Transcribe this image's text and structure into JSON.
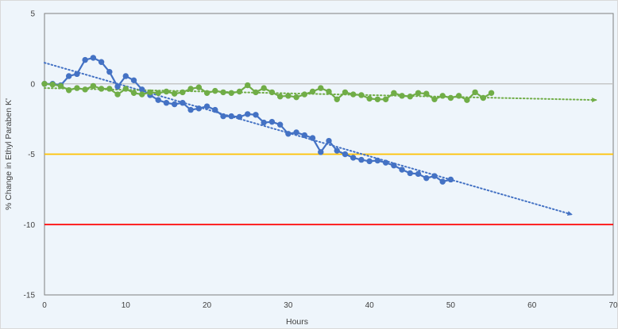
{
  "chart_data": {
    "type": "line",
    "title": "",
    "xlabel": "Hours",
    "ylabel": "% Change in Ethyl Paraben K'",
    "xlim": [
      0,
      70
    ],
    "ylim": [
      -15,
      5
    ],
    "x_ticks": [
      0,
      10,
      20,
      30,
      40,
      50,
      60,
      70
    ],
    "y_ticks": [
      5,
      0,
      -5,
      -10,
      -15
    ],
    "grid": false,
    "legend": "none",
    "colors": {
      "plot_background": "#eef5fb",
      "blue_series": "#4472c4",
      "green_series": "#70ad47",
      "zero_line": "#bfbfbf",
      "warning_line": "#ffc000",
      "limit_line": "#ff0000"
    },
    "reference_lines": [
      {
        "y": 0,
        "color": "#bfbfbf"
      },
      {
        "y": -5,
        "color": "#ffc000"
      },
      {
        "y": -10,
        "color": "#ff0000"
      }
    ],
    "series": [
      {
        "color": "#4472c4",
        "x": [
          0,
          1,
          2,
          3,
          4,
          5,
          6,
          7,
          8,
          9,
          10,
          11,
          12,
          13,
          14,
          15,
          16,
          17,
          18,
          19,
          20,
          21,
          22,
          23,
          24,
          25,
          26,
          27,
          28,
          29,
          30,
          31,
          32,
          33,
          34,
          35,
          36,
          37,
          38,
          39,
          40,
          41,
          42,
          43,
          44,
          45,
          46,
          47,
          48,
          49,
          50
        ],
        "y": [
          0,
          0,
          -0.1,
          0.55,
          0.7,
          1.7,
          1.85,
          1.55,
          0.85,
          -0.2,
          0.55,
          0.25,
          -0.4,
          -0.8,
          -1.15,
          -1.35,
          -1.45,
          -1.35,
          -1.85,
          -1.75,
          -1.6,
          -1.85,
          -2.3,
          -2.3,
          -2.35,
          -2.15,
          -2.2,
          -2.75,
          -2.7,
          -2.9,
          -3.55,
          -3.45,
          -3.65,
          -3.85,
          -4.85,
          -4.05,
          -4.75,
          -5.0,
          -5.25,
          -5.4,
          -5.5,
          -5.45,
          -5.6,
          -5.8,
          -6.1,
          -6.35,
          -6.4,
          -6.7,
          -6.55,
          -6.95,
          -6.8
        ],
        "trendline": {
          "x": [
            0,
            65
          ],
          "y": [
            1.5,
            -9.3
          ]
        }
      },
      {
        "color": "#70ad47",
        "x": [
          0,
          1,
          2,
          3,
          4,
          5,
          6,
          7,
          8,
          9,
          10,
          11,
          12,
          13,
          14,
          15,
          16,
          17,
          18,
          19,
          20,
          21,
          22,
          23,
          24,
          25,
          26,
          27,
          28,
          29,
          30,
          31,
          32,
          33,
          34,
          35,
          36,
          37,
          38,
          39,
          40,
          41,
          42,
          43,
          44,
          45,
          46,
          47,
          48,
          49,
          50,
          51,
          52,
          53,
          54,
          55
        ],
        "y": [
          0,
          -0.05,
          -0.15,
          -0.45,
          -0.3,
          -0.4,
          -0.15,
          -0.35,
          -0.35,
          -0.75,
          -0.35,
          -0.65,
          -0.75,
          -0.6,
          -0.65,
          -0.55,
          -0.7,
          -0.6,
          -0.35,
          -0.25,
          -0.65,
          -0.5,
          -0.6,
          -0.65,
          -0.55,
          -0.1,
          -0.6,
          -0.3,
          -0.6,
          -0.9,
          -0.85,
          -0.95,
          -0.75,
          -0.55,
          -0.3,
          -0.55,
          -1.1,
          -0.6,
          -0.75,
          -0.8,
          -1.05,
          -1.1,
          -1.1,
          -0.65,
          -0.85,
          -0.9,
          -0.65,
          -0.7,
          -1.1,
          -0.85,
          -1.0,
          -0.85,
          -1.15,
          -0.6,
          -1.0,
          -0.65
        ],
        "trendline": {
          "x": [
            0,
            68
          ],
          "y": [
            -0.3,
            -1.15
          ]
        }
      }
    ]
  }
}
